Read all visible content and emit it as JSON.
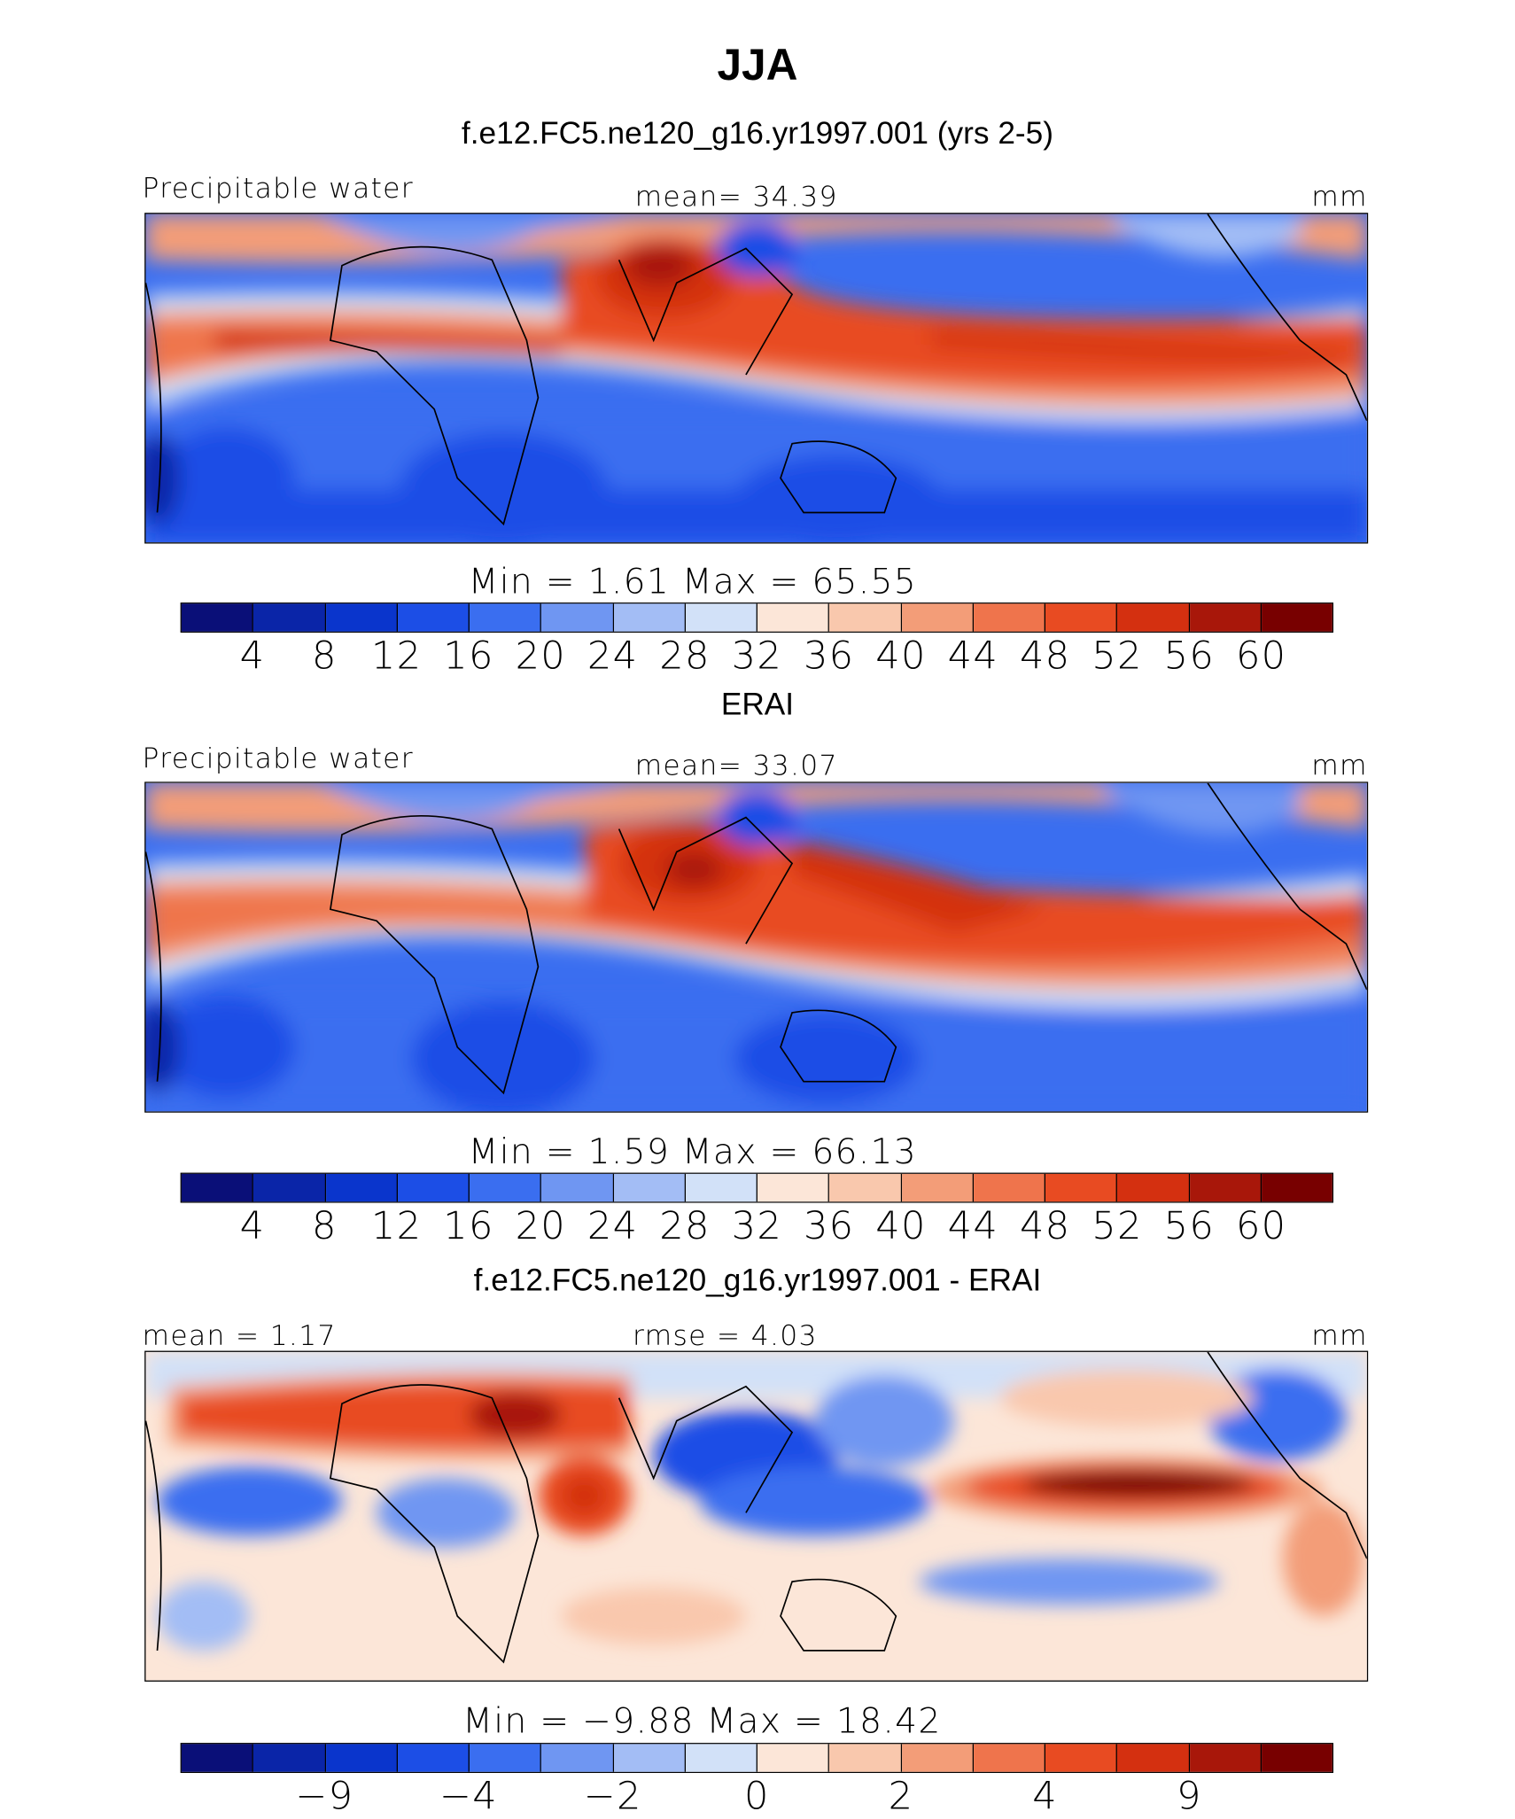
{
  "title": "JJA",
  "colors": {
    "abs": [
      "#0a0f78",
      "#0a25a8",
      "#0a35cc",
      "#1c4ee6",
      "#3a6ef0",
      "#6f96f2",
      "#a3bdf5",
      "#d2e1f8",
      "#fce6d8",
      "#f9c8ad",
      "#f39d78",
      "#ef744c",
      "#e84b22",
      "#d43010",
      "#a8170a",
      "#780000"
    ],
    "diff": [
      "#0a0f78",
      "#0a25a8",
      "#0a35cc",
      "#1c4ee6",
      "#3a6ef0",
      "#6f96f2",
      "#a3bdf5",
      "#d2e1f8",
      "#fce6d8",
      "#f9c8ad",
      "#f39d78",
      "#ef744c",
      "#e84b22",
      "#d43010",
      "#a8170a",
      "#780000"
    ]
  },
  "panels": [
    {
      "subtitle": "f.e12.FC5.ne120_g16.yr1997.001 (yrs 2-5)",
      "left_label": "Precipitable water",
      "center_label": "mean=   34.39",
      "right_label": "mm",
      "minmax": "Min  =      1.61  Max  =    65.55"
    },
    {
      "subtitle": "ERAI",
      "left_label": "Precipitable water",
      "center_label": "mean=   33.07",
      "right_label": "mm",
      "minmax": "Min  =      1.59  Max  =    66.13"
    },
    {
      "subtitle": "f.e12.FC5.ne120_g16.yr1997.001 - ERAI",
      "left_label": "mean  =    1.17",
      "center_label": "rmse  =    4.03",
      "right_label": "mm",
      "minmax": "Min  =   −9.88  Max  =    18.42"
    }
  ],
  "colorbar_abs": {
    "tick_labels": [
      "4",
      "8",
      "12",
      "16",
      "20",
      "24",
      "28",
      "32",
      "36",
      "40",
      "44",
      "48",
      "52",
      "56",
      "60"
    ]
  },
  "colorbar_diff": {
    "tick_labels": [
      "−9",
      "−4",
      "−2",
      "0",
      "2",
      "4",
      "9"
    ]
  },
  "chart_data": [
    {
      "type": "heatmap",
      "title": "JJA",
      "subtitle": "f.e12.FC5.ne120_g16.yr1997.001 (yrs 2-5)",
      "variable": "Precipitable water",
      "units": "mm",
      "mean": 34.39,
      "min": 1.61,
      "max": 65.55,
      "contour_levels": [
        4,
        8,
        12,
        16,
        20,
        24,
        28,
        32,
        36,
        40,
        44,
        48,
        52,
        56,
        60
      ]
    },
    {
      "type": "heatmap",
      "subtitle": "ERAI",
      "variable": "Precipitable water",
      "units": "mm",
      "mean": 33.07,
      "min": 1.59,
      "max": 66.13,
      "contour_levels": [
        4,
        8,
        12,
        16,
        20,
        24,
        28,
        32,
        36,
        40,
        44,
        48,
        52,
        56,
        60
      ]
    },
    {
      "type": "heatmap",
      "subtitle": "f.e12.FC5.ne120_g16.yr1997.001 - ERAI",
      "units": "mm",
      "mean": 1.17,
      "rmse": 4.03,
      "min": -9.88,
      "max": 18.42,
      "tick_labels": [
        -9,
        -4,
        -2,
        0,
        2,
        4,
        9
      ]
    }
  ]
}
